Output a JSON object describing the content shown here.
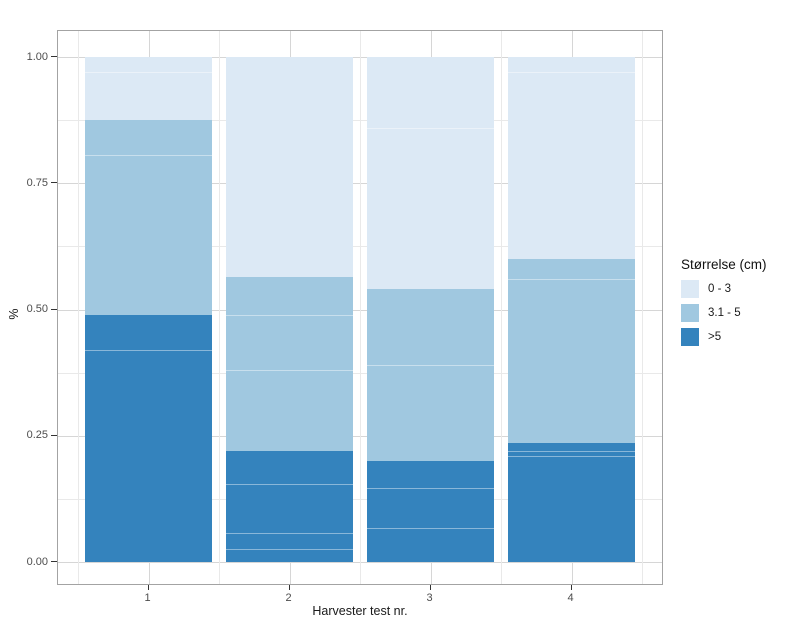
{
  "y_axis": {
    "title": "%",
    "tick_labels": [
      "0.00",
      "0.25",
      "0.50",
      "0.75",
      "1.00"
    ]
  },
  "x_axis": {
    "title": "Harvester test nr.",
    "tick_labels": [
      "1",
      "2",
      "3",
      "4"
    ]
  },
  "legend": {
    "title": "Størrelse (cm)",
    "position": "right",
    "entries": [
      {
        "label": "0 - 3",
        "color": "#dce9f5"
      },
      {
        "label": "3.1 - 5",
        "color": "#a0c8e0"
      },
      {
        "label": ">5",
        "color": "#3483bd"
      }
    ]
  },
  "colors": {
    "panel_background": "#ffffff",
    "panel_border": "#a3a3a3",
    "grid_major": "#d6d6d6",
    "grid_minor": "#e9e9e9",
    "tick_mark": "#333333",
    "tick_label": "#4d4d4d",
    "segment_separator": "rgba(255,255,255,0.42)"
  },
  "chart_data": {
    "type": "bar",
    "stacked": true,
    "title": "",
    "xlabel": "Harvester test nr.",
    "ylabel": "%",
    "categories": [
      "1",
      "2",
      "3",
      "4"
    ],
    "series": [
      {
        "name": "0 - 3",
        "color": "#dce9f5",
        "values": [
          0.125,
          0.435,
          0.46,
          0.4
        ]
      },
      {
        "name": "3.1 - 5",
        "color": "#a0c8e0",
        "values": [
          0.385,
          0.345,
          0.34,
          0.365
        ]
      },
      {
        "name": ">5",
        "color": "#3483bd",
        "values": [
          0.49,
          0.22,
          0.2,
          0.235
        ]
      }
    ],
    "stack_order_bottom_to_top": [
      ">5",
      "3.1 - 5",
      "0 - 3"
    ],
    "segment_separators_per_category": [
      [
        0.42,
        0.805,
        0.97
      ],
      [
        0.025,
        0.058,
        0.155,
        0.38,
        0.49
      ],
      [
        0.067,
        0.146,
        0.39,
        0.86
      ],
      [
        0.209,
        0.22,
        0.56,
        0.97
      ]
    ],
    "ylim": [
      0,
      1
    ],
    "y_major_ticks": [
      0,
      0.25,
      0.5,
      0.75,
      1.0
    ],
    "y_minor_ticks": [
      0.125,
      0.375,
      0.625,
      0.875
    ],
    "grid": true,
    "legend_position": "right",
    "legend_title": "Størrelse (cm)"
  }
}
